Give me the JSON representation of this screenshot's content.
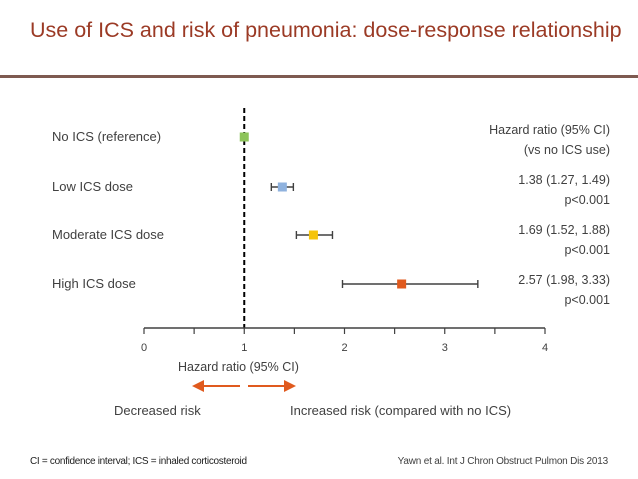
{
  "header": {
    "title": "Use of ICS and risk of pneumonia: dose-response relationship"
  },
  "chart_data": {
    "type": "forest",
    "title": "Use of ICS and risk of pneumonia: dose-response relationship",
    "xlabel": "Hazard ratio (95% CI)",
    "xlim": [
      0,
      4
    ],
    "xticks": [
      "0",
      "1",
      "2",
      "3",
      "4"
    ],
    "reference_line": 1,
    "ci_header": [
      "Hazard ratio (95% CI)",
      "(vs no ICS use)"
    ],
    "rows": [
      {
        "label": "No ICS (reference)",
        "hr": 1.0,
        "lo": null,
        "hi": null,
        "text1": "",
        "text2": "",
        "color": "#8dc45a"
      },
      {
        "label": "Low ICS dose",
        "hr": 1.38,
        "lo": 1.27,
        "hi": 1.49,
        "text1": "1.38 (1.27, 1.49)",
        "text2": "p<0.001",
        "color": "#8fb2de"
      },
      {
        "label": "Moderate ICS dose",
        "hr": 1.69,
        "lo": 1.52,
        "hi": 1.88,
        "text1": "1.69 (1.52, 1.88)",
        "text2": "p<0.001",
        "color": "#f5c40c"
      },
      {
        "label": "High ICS dose",
        "hr": 2.57,
        "lo": 1.98,
        "hi": 3.33,
        "text1": "2.57 (1.98, 3.33)",
        "text2": "p<0.001",
        "color": "#e05a1e"
      }
    ],
    "direction": {
      "decreased": "Decreased risk",
      "increased": "Increased risk (compared with no ICS)",
      "arrow_color": "#e05a1e"
    }
  },
  "footer": {
    "left": "CI = confidence interval; ICS = inhaled corticosteroid",
    "right": "Yawn et al. Int J Chron Obstruct Pulmon Dis 2013"
  }
}
